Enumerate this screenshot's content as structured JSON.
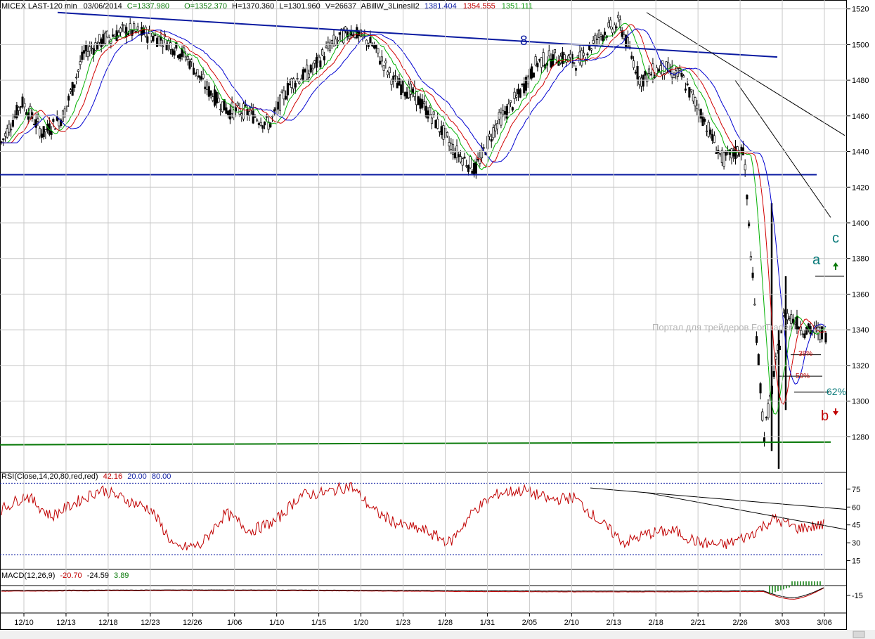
{
  "chart_data": [
    {
      "type": "candlestick",
      "header": {
        "symbol": "MICEX LAST-120 min",
        "date": "03/06/2014",
        "close": "C=1337.980",
        "open": "O=1352.370",
        "high": "H=1370.360",
        "low": "L=1301.960",
        "volume": "V=26637",
        "indicator": "ABillW_3LinesII2",
        "ind_values": [
          "1381.404",
          "1354.555",
          "1351.111"
        ]
      },
      "ylim": [
        1260,
        1525
      ],
      "y_ticks": [
        1280,
        1300,
        1320,
        1340,
        1360,
        1380,
        1400,
        1420,
        1440,
        1460,
        1480,
        1500,
        1520
      ],
      "x_tick_labels": [
        "12/10",
        "12/13",
        "12/18",
        "12/23",
        "12/26",
        "1/06",
        "1/10",
        "1/15",
        "1/20",
        "1/23",
        "1/28",
        "1/31",
        "2/05",
        "2/10",
        "2/13",
        "2/18",
        "2/21",
        "2/26",
        "3/03",
        "3/06"
      ],
      "price_path": [
        {
          "date": "12/10",
          "value": 1445
        },
        {
          "date": "12/11",
          "value": 1468
        },
        {
          "date": "12/13",
          "value": 1450
        },
        {
          "date": "12/17",
          "value": 1460
        },
        {
          "date": "12/18",
          "value": 1495
        },
        {
          "date": "12/20",
          "value": 1503
        },
        {
          "date": "12/23",
          "value": 1508
        },
        {
          "date": "12/25",
          "value": 1506
        },
        {
          "date": "12/26",
          "value": 1502
        },
        {
          "date": "12/30",
          "value": 1493
        },
        {
          "date": "1/06",
          "value": 1475
        },
        {
          "date": "1/08",
          "value": 1463
        },
        {
          "date": "1/10",
          "value": 1462
        },
        {
          "date": "1/13",
          "value": 1455
        },
        {
          "date": "1/15",
          "value": 1478
        },
        {
          "date": "1/17",
          "value": 1485
        },
        {
          "date": "1/20",
          "value": 1500
        },
        {
          "date": "1/22",
          "value": 1508
        },
        {
          "date": "1/23",
          "value": 1500
        },
        {
          "date": "1/27",
          "value": 1480
        },
        {
          "date": "1/28",
          "value": 1472
        },
        {
          "date": "1/30",
          "value": 1458
        },
        {
          "date": "1/31",
          "value": 1440
        },
        {
          "date": "2/04",
          "value": 1430
        },
        {
          "date": "2/05",
          "value": 1455
        },
        {
          "date": "2/07",
          "value": 1470
        },
        {
          "date": "2/10",
          "value": 1490
        },
        {
          "date": "2/12",
          "value": 1493
        },
        {
          "date": "2/13",
          "value": 1490
        },
        {
          "date": "2/17",
          "value": 1505
        },
        {
          "date": "2/18",
          "value": 1512
        },
        {
          "date": "2/19",
          "value": 1480
        },
        {
          "date": "2/21",
          "value": 1487
        },
        {
          "date": "2/24",
          "value": 1482
        },
        {
          "date": "2/26",
          "value": 1460
        },
        {
          "date": "2/27",
          "value": 1435
        },
        {
          "date": "2/28",
          "value": 1442
        },
        {
          "date": "3/03",
          "value": 1280
        },
        {
          "date": "3/04",
          "value": 1350
        },
        {
          "date": "3/05",
          "value": 1340
        },
        {
          "date": "3/06",
          "value": 1338
        }
      ],
      "trendlines": {
        "upper_resistance": {
          "from": {
            "date": "12/10",
            "value": 1518
          },
          "to": {
            "date": "3/03+",
            "value": 1493
          },
          "color": "#0a1aa0"
        },
        "support_1427": {
          "value": 1427,
          "color": "#0a1aa0"
        },
        "support_1276": {
          "value": 1276,
          "color": "#0a7a0a"
        }
      },
      "annotations": [
        {
          "text": "8",
          "color": "#0a1aa0"
        },
        {
          "text": "a",
          "color": "#0a7a7a"
        },
        {
          "text": "c",
          "color": "#0a7a7a"
        },
        {
          "text": "b",
          "color": "#c00000"
        },
        {
          "text": "38%",
          "color": "#c00000"
        },
        {
          "text": "50%",
          "color": "#c00000"
        },
        {
          "text": "62%",
          "color": "#0a7a7a"
        }
      ],
      "watermark": "Портал для трейдеров ForTrader"
    },
    {
      "type": "line",
      "header": {
        "label": "RSI(Close,14,20,80,red,red)",
        "value": "42.16",
        "low": "20.00",
        "high": "80.00"
      },
      "ylim": [
        10,
        82
      ],
      "y_ticks": [
        15,
        30,
        45,
        60,
        75
      ],
      "levels": [
        20,
        80
      ],
      "path": [
        58,
        70,
        52,
        64,
        75,
        66,
        58,
        25,
        28,
        55,
        40,
        48,
        70,
        72,
        78,
        56,
        45,
        40,
        30,
        58,
        72,
        74,
        66,
        68,
        48,
        30,
        38,
        40,
        30,
        28,
        36,
        50,
        42,
        45
      ],
      "color": "#c00000"
    },
    {
      "type": "macd",
      "header": {
        "label": "MACD(12,26,9)",
        "macd": "-20.70",
        "signal": "-24.59",
        "hist": "3.89"
      },
      "y_ticks": [
        -15
      ],
      "color_macd": "#c00000",
      "color_signal": "#000000",
      "color_hist": "#0a7a0a"
    }
  ]
}
